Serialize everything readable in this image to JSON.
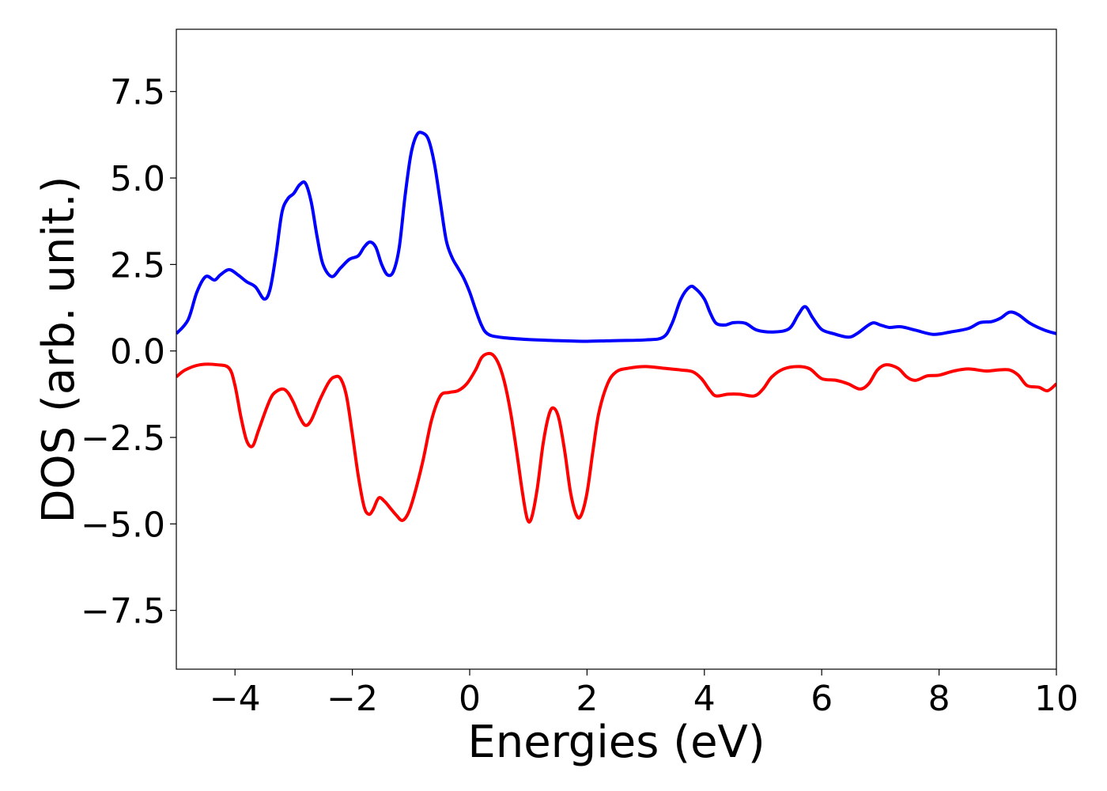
{
  "chart_data": {
    "type": "line",
    "title": "",
    "xlabel": "Energies (eV)",
    "ylabel": "DOS (arb. unit.)",
    "xlim": [
      -5,
      10
    ],
    "ylim": [
      -9.2,
      9.3
    ],
    "xticks": [
      -4,
      -2,
      0,
      2,
      4,
      6,
      8,
      10
    ],
    "xtick_labels": [
      "−4",
      "−2",
      "0",
      "2",
      "4",
      "6",
      "8",
      "10"
    ],
    "yticks": [
      7.5,
      5.0,
      2.5,
      0.0,
      -2.5,
      -5.0,
      -7.5
    ],
    "ytick_labels": [
      "7.5",
      "5.0",
      "2.5",
      "0.0",
      "−2.5",
      "−5.0",
      "−7.5"
    ],
    "grid": false,
    "legend": "none",
    "series": [
      {
        "color": "#0000ff",
        "points": [
          [
            -5.0,
            0.5
          ],
          [
            -4.8,
            0.9
          ],
          [
            -4.65,
            1.7
          ],
          [
            -4.5,
            2.15
          ],
          [
            -4.35,
            2.05
          ],
          [
            -4.25,
            2.2
          ],
          [
            -4.1,
            2.35
          ],
          [
            -3.95,
            2.2
          ],
          [
            -3.8,
            2.0
          ],
          [
            -3.65,
            1.85
          ],
          [
            -3.5,
            1.5
          ],
          [
            -3.4,
            1.8
          ],
          [
            -3.3,
            2.8
          ],
          [
            -3.2,
            4.0
          ],
          [
            -3.1,
            4.4
          ],
          [
            -3.0,
            4.55
          ],
          [
            -2.9,
            4.8
          ],
          [
            -2.8,
            4.85
          ],
          [
            -2.7,
            4.3
          ],
          [
            -2.6,
            3.3
          ],
          [
            -2.5,
            2.5
          ],
          [
            -2.35,
            2.15
          ],
          [
            -2.2,
            2.4
          ],
          [
            -2.05,
            2.65
          ],
          [
            -1.9,
            2.75
          ],
          [
            -1.8,
            3.0
          ],
          [
            -1.7,
            3.15
          ],
          [
            -1.6,
            3.0
          ],
          [
            -1.5,
            2.5
          ],
          [
            -1.4,
            2.2
          ],
          [
            -1.3,
            2.3
          ],
          [
            -1.2,
            3.0
          ],
          [
            -1.1,
            4.5
          ],
          [
            -1.0,
            5.7
          ],
          [
            -0.9,
            6.25
          ],
          [
            -0.8,
            6.3
          ],
          [
            -0.7,
            6.1
          ],
          [
            -0.6,
            5.4
          ],
          [
            -0.5,
            4.3
          ],
          [
            -0.4,
            3.2
          ],
          [
            -0.3,
            2.7
          ],
          [
            -0.2,
            2.4
          ],
          [
            -0.1,
            2.1
          ],
          [
            0.0,
            1.7
          ],
          [
            0.1,
            1.2
          ],
          [
            0.2,
            0.75
          ],
          [
            0.3,
            0.5
          ],
          [
            0.5,
            0.4
          ],
          [
            1.0,
            0.33
          ],
          [
            1.5,
            0.3
          ],
          [
            2.0,
            0.28
          ],
          [
            2.5,
            0.3
          ],
          [
            3.0,
            0.32
          ],
          [
            3.3,
            0.4
          ],
          [
            3.45,
            0.8
          ],
          [
            3.6,
            1.5
          ],
          [
            3.75,
            1.85
          ],
          [
            3.85,
            1.8
          ],
          [
            4.0,
            1.5
          ],
          [
            4.1,
            1.1
          ],
          [
            4.2,
            0.8
          ],
          [
            4.35,
            0.75
          ],
          [
            4.5,
            0.82
          ],
          [
            4.7,
            0.8
          ],
          [
            4.9,
            0.6
          ],
          [
            5.2,
            0.55
          ],
          [
            5.45,
            0.65
          ],
          [
            5.6,
            1.05
          ],
          [
            5.72,
            1.28
          ],
          [
            5.85,
            0.95
          ],
          [
            6.0,
            0.62
          ],
          [
            6.2,
            0.5
          ],
          [
            6.45,
            0.4
          ],
          [
            6.6,
            0.5
          ],
          [
            6.85,
            0.8
          ],
          [
            7.0,
            0.75
          ],
          [
            7.15,
            0.68
          ],
          [
            7.35,
            0.7
          ],
          [
            7.6,
            0.6
          ],
          [
            7.9,
            0.48
          ],
          [
            8.2,
            0.55
          ],
          [
            8.5,
            0.65
          ],
          [
            8.7,
            0.82
          ],
          [
            8.9,
            0.85
          ],
          [
            9.05,
            0.95
          ],
          [
            9.2,
            1.12
          ],
          [
            9.35,
            1.05
          ],
          [
            9.55,
            0.8
          ],
          [
            9.8,
            0.6
          ],
          [
            10.0,
            0.5
          ]
        ]
      },
      {
        "color": "#ff0000",
        "points": [
          [
            -5.0,
            -0.75
          ],
          [
            -4.85,
            -0.55
          ],
          [
            -4.6,
            -0.4
          ],
          [
            -4.3,
            -0.4
          ],
          [
            -4.1,
            -0.5
          ],
          [
            -4.0,
            -1.0
          ],
          [
            -3.9,
            -1.9
          ],
          [
            -3.8,
            -2.6
          ],
          [
            -3.7,
            -2.75
          ],
          [
            -3.6,
            -2.3
          ],
          [
            -3.45,
            -1.6
          ],
          [
            -3.35,
            -1.25
          ],
          [
            -3.2,
            -1.1
          ],
          [
            -3.1,
            -1.2
          ],
          [
            -3.0,
            -1.5
          ],
          [
            -2.9,
            -1.9
          ],
          [
            -2.8,
            -2.15
          ],
          [
            -2.7,
            -2.0
          ],
          [
            -2.55,
            -1.4
          ],
          [
            -2.4,
            -0.9
          ],
          [
            -2.3,
            -0.75
          ],
          [
            -2.2,
            -0.8
          ],
          [
            -2.1,
            -1.3
          ],
          [
            -2.0,
            -2.4
          ],
          [
            -1.9,
            -3.6
          ],
          [
            -1.8,
            -4.5
          ],
          [
            -1.72,
            -4.72
          ],
          [
            -1.65,
            -4.6
          ],
          [
            -1.55,
            -4.25
          ],
          [
            -1.45,
            -4.35
          ],
          [
            -1.35,
            -4.55
          ],
          [
            -1.25,
            -4.75
          ],
          [
            -1.15,
            -4.9
          ],
          [
            -1.05,
            -4.7
          ],
          [
            -0.95,
            -4.2
          ],
          [
            -0.8,
            -3.2
          ],
          [
            -0.65,
            -2.0
          ],
          [
            -0.5,
            -1.3
          ],
          [
            -0.35,
            -1.2
          ],
          [
            -0.2,
            -1.15
          ],
          [
            -0.05,
            -0.95
          ],
          [
            0.1,
            -0.55
          ],
          [
            0.2,
            -0.2
          ],
          [
            0.3,
            -0.08
          ],
          [
            0.4,
            -0.12
          ],
          [
            0.5,
            -0.4
          ],
          [
            0.6,
            -0.95
          ],
          [
            0.7,
            -1.8
          ],
          [
            0.8,
            -2.9
          ],
          [
            0.9,
            -4.1
          ],
          [
            0.98,
            -4.85
          ],
          [
            1.05,
            -4.85
          ],
          [
            1.15,
            -4.0
          ],
          [
            1.25,
            -2.7
          ],
          [
            1.35,
            -1.85
          ],
          [
            1.43,
            -1.65
          ],
          [
            1.52,
            -1.95
          ],
          [
            1.62,
            -2.9
          ],
          [
            1.72,
            -4.1
          ],
          [
            1.82,
            -4.75
          ],
          [
            1.9,
            -4.75
          ],
          [
            2.0,
            -4.1
          ],
          [
            2.1,
            -2.9
          ],
          [
            2.2,
            -1.8
          ],
          [
            2.35,
            -0.95
          ],
          [
            2.5,
            -0.6
          ],
          [
            2.7,
            -0.5
          ],
          [
            3.0,
            -0.45
          ],
          [
            3.3,
            -0.5
          ],
          [
            3.6,
            -0.55
          ],
          [
            3.8,
            -0.6
          ],
          [
            3.95,
            -0.8
          ],
          [
            4.1,
            -1.15
          ],
          [
            4.2,
            -1.3
          ],
          [
            4.4,
            -1.25
          ],
          [
            4.6,
            -1.25
          ],
          [
            4.85,
            -1.3
          ],
          [
            5.0,
            -1.1
          ],
          [
            5.15,
            -0.75
          ],
          [
            5.35,
            -0.52
          ],
          [
            5.6,
            -0.45
          ],
          [
            5.8,
            -0.52
          ],
          [
            6.0,
            -0.8
          ],
          [
            6.25,
            -0.85
          ],
          [
            6.45,
            -0.95
          ],
          [
            6.65,
            -1.1
          ],
          [
            6.8,
            -0.95
          ],
          [
            6.95,
            -0.55
          ],
          [
            7.1,
            -0.4
          ],
          [
            7.3,
            -0.5
          ],
          [
            7.45,
            -0.75
          ],
          [
            7.6,
            -0.85
          ],
          [
            7.8,
            -0.72
          ],
          [
            8.0,
            -0.7
          ],
          [
            8.25,
            -0.58
          ],
          [
            8.5,
            -0.52
          ],
          [
            8.8,
            -0.58
          ],
          [
            9.0,
            -0.55
          ],
          [
            9.2,
            -0.55
          ],
          [
            9.35,
            -0.7
          ],
          [
            9.5,
            -1.0
          ],
          [
            9.7,
            -1.05
          ],
          [
            9.85,
            -1.15
          ],
          [
            10.0,
            -0.95
          ]
        ]
      }
    ]
  }
}
